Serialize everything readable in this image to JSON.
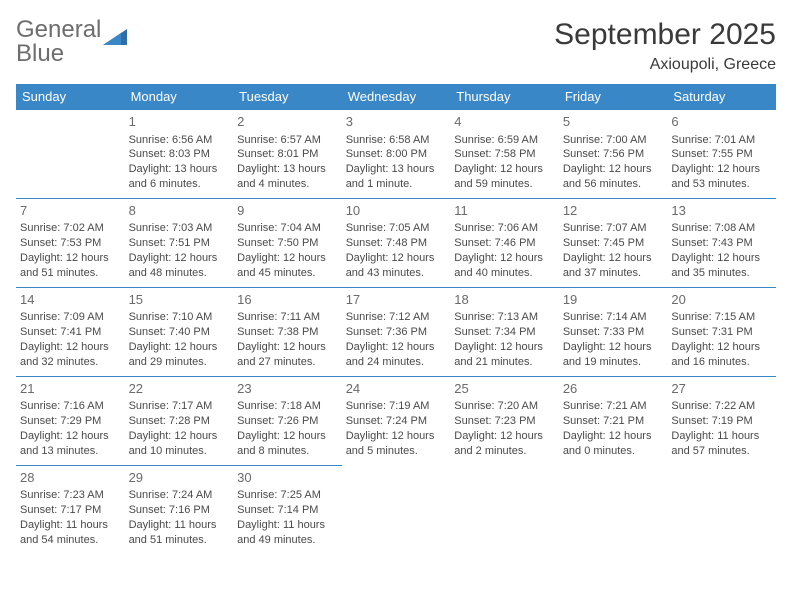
{
  "brand": {
    "part1": "General",
    "part2": "Blue"
  },
  "title": "September 2025",
  "location": "Axioupoli, Greece",
  "colors": {
    "header_bg": "#3a87c7",
    "header_text": "#ffffff",
    "border": "#3a87c7",
    "body_text": "#4a4a4a",
    "daynum": "#6a6a6a",
    "title_text": "#3a3a3a",
    "logo_gray": "#6d6d6d",
    "logo_blue": "#3a7ab8",
    "background": "#ffffff"
  },
  "weekdays": [
    "Sunday",
    "Monday",
    "Tuesday",
    "Wednesday",
    "Thursday",
    "Friday",
    "Saturday"
  ],
  "labels": {
    "sunrise": "Sunrise:",
    "sunset": "Sunset:",
    "daylight": "Daylight:"
  },
  "weeks": [
    [
      null,
      {
        "n": "1",
        "sr": "6:56 AM",
        "ss": "8:03 PM",
        "dl": "13 hours and 6 minutes."
      },
      {
        "n": "2",
        "sr": "6:57 AM",
        "ss": "8:01 PM",
        "dl": "13 hours and 4 minutes."
      },
      {
        "n": "3",
        "sr": "6:58 AM",
        "ss": "8:00 PM",
        "dl": "13 hours and 1 minute."
      },
      {
        "n": "4",
        "sr": "6:59 AM",
        "ss": "7:58 PM",
        "dl": "12 hours and 59 minutes."
      },
      {
        "n": "5",
        "sr": "7:00 AM",
        "ss": "7:56 PM",
        "dl": "12 hours and 56 minutes."
      },
      {
        "n": "6",
        "sr": "7:01 AM",
        "ss": "7:55 PM",
        "dl": "12 hours and 53 minutes."
      }
    ],
    [
      {
        "n": "7",
        "sr": "7:02 AM",
        "ss": "7:53 PM",
        "dl": "12 hours and 51 minutes."
      },
      {
        "n": "8",
        "sr": "7:03 AM",
        "ss": "7:51 PM",
        "dl": "12 hours and 48 minutes."
      },
      {
        "n": "9",
        "sr": "7:04 AM",
        "ss": "7:50 PM",
        "dl": "12 hours and 45 minutes."
      },
      {
        "n": "10",
        "sr": "7:05 AM",
        "ss": "7:48 PM",
        "dl": "12 hours and 43 minutes."
      },
      {
        "n": "11",
        "sr": "7:06 AM",
        "ss": "7:46 PM",
        "dl": "12 hours and 40 minutes."
      },
      {
        "n": "12",
        "sr": "7:07 AM",
        "ss": "7:45 PM",
        "dl": "12 hours and 37 minutes."
      },
      {
        "n": "13",
        "sr": "7:08 AM",
        "ss": "7:43 PM",
        "dl": "12 hours and 35 minutes."
      }
    ],
    [
      {
        "n": "14",
        "sr": "7:09 AM",
        "ss": "7:41 PM",
        "dl": "12 hours and 32 minutes."
      },
      {
        "n": "15",
        "sr": "7:10 AM",
        "ss": "7:40 PM",
        "dl": "12 hours and 29 minutes."
      },
      {
        "n": "16",
        "sr": "7:11 AM",
        "ss": "7:38 PM",
        "dl": "12 hours and 27 minutes."
      },
      {
        "n": "17",
        "sr": "7:12 AM",
        "ss": "7:36 PM",
        "dl": "12 hours and 24 minutes."
      },
      {
        "n": "18",
        "sr": "7:13 AM",
        "ss": "7:34 PM",
        "dl": "12 hours and 21 minutes."
      },
      {
        "n": "19",
        "sr": "7:14 AM",
        "ss": "7:33 PM",
        "dl": "12 hours and 19 minutes."
      },
      {
        "n": "20",
        "sr": "7:15 AM",
        "ss": "7:31 PM",
        "dl": "12 hours and 16 minutes."
      }
    ],
    [
      {
        "n": "21",
        "sr": "7:16 AM",
        "ss": "7:29 PM",
        "dl": "12 hours and 13 minutes."
      },
      {
        "n": "22",
        "sr": "7:17 AM",
        "ss": "7:28 PM",
        "dl": "12 hours and 10 minutes."
      },
      {
        "n": "23",
        "sr": "7:18 AM",
        "ss": "7:26 PM",
        "dl": "12 hours and 8 minutes."
      },
      {
        "n": "24",
        "sr": "7:19 AM",
        "ss": "7:24 PM",
        "dl": "12 hours and 5 minutes."
      },
      {
        "n": "25",
        "sr": "7:20 AM",
        "ss": "7:23 PM",
        "dl": "12 hours and 2 minutes."
      },
      {
        "n": "26",
        "sr": "7:21 AM",
        "ss": "7:21 PM",
        "dl": "12 hours and 0 minutes."
      },
      {
        "n": "27",
        "sr": "7:22 AM",
        "ss": "7:19 PM",
        "dl": "11 hours and 57 minutes."
      }
    ],
    [
      {
        "n": "28",
        "sr": "7:23 AM",
        "ss": "7:17 PM",
        "dl": "11 hours and 54 minutes."
      },
      {
        "n": "29",
        "sr": "7:24 AM",
        "ss": "7:16 PM",
        "dl": "11 hours and 51 minutes."
      },
      {
        "n": "30",
        "sr": "7:25 AM",
        "ss": "7:14 PM",
        "dl": "11 hours and 49 minutes."
      },
      null,
      null,
      null,
      null
    ]
  ]
}
